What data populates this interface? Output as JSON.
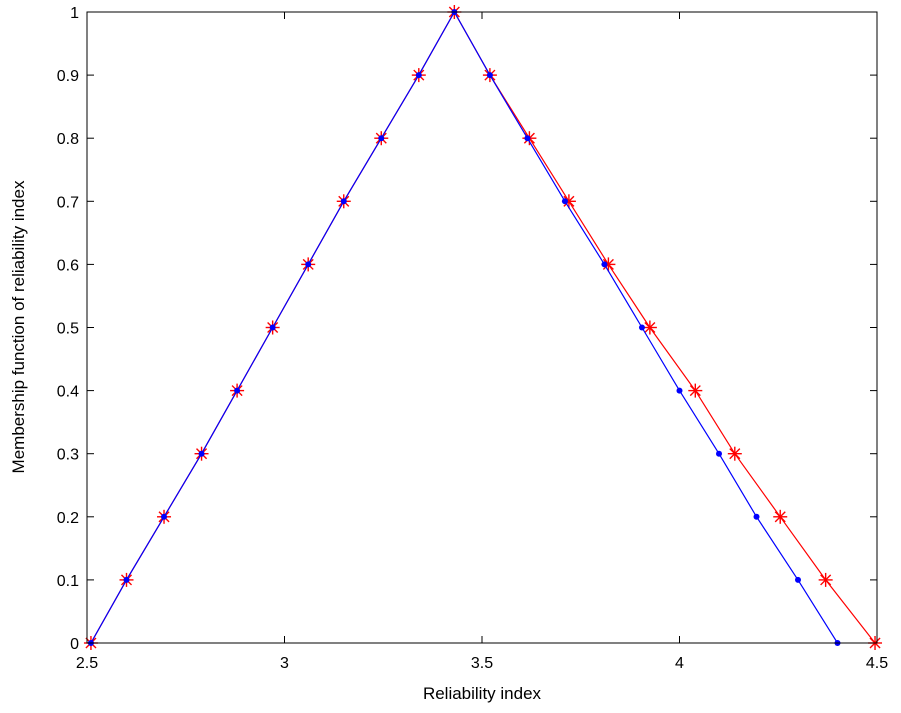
{
  "chart_data": {
    "type": "line",
    "xlabel": "Reliability index",
    "ylabel": "Membership function of reliability index",
    "xlim": [
      2.5,
      4.5
    ],
    "ylim": [
      0,
      1
    ],
    "xticks": [
      2.5,
      3,
      3.5,
      4,
      4.5
    ],
    "xtick_labels": [
      "2.5",
      "3",
      "3.5",
      "4",
      "4.5"
    ],
    "yticks": [
      0,
      0.1,
      0.2,
      0.3,
      0.4,
      0.5,
      0.6,
      0.7,
      0.8,
      0.9,
      1
    ],
    "ytick_labels": [
      "0",
      "0.1",
      "0.2",
      "0.3",
      "0.4",
      "0.5",
      "0.6",
      "0.7",
      "0.8",
      "0.9",
      "1"
    ],
    "grid": false,
    "legend": "none",
    "series": [
      {
        "color": "#ff0000",
        "marker": "asterisk",
        "x": [
          2.51,
          2.6,
          2.695,
          2.79,
          2.88,
          2.97,
          3.06,
          3.15,
          3.245,
          3.34,
          3.43,
          3.52,
          3.62,
          3.72,
          3.82,
          3.925,
          4.04,
          4.14,
          4.255,
          4.37,
          4.495
        ],
        "y": [
          0,
          0.1,
          0.2,
          0.3,
          0.4,
          0.5,
          0.6,
          0.7,
          0.8,
          0.9,
          1,
          0.9,
          0.8,
          0.7,
          0.6,
          0.5,
          0.4,
          0.3,
          0.2,
          0.1,
          0
        ]
      },
      {
        "color": "#0000ff",
        "marker": "dot",
        "x": [
          2.51,
          2.6,
          2.695,
          2.79,
          2.88,
          2.97,
          3.06,
          3.15,
          3.245,
          3.34,
          3.43,
          3.52,
          3.615,
          3.71,
          3.81,
          3.905,
          4.0,
          4.1,
          4.195,
          4.3,
          4.4
        ],
        "y": [
          0,
          0.1,
          0.2,
          0.3,
          0.4,
          0.5,
          0.6,
          0.7,
          0.8,
          0.9,
          1,
          0.9,
          0.8,
          0.7,
          0.6,
          0.5,
          0.4,
          0.3,
          0.2,
          0.1,
          0
        ]
      }
    ]
  }
}
